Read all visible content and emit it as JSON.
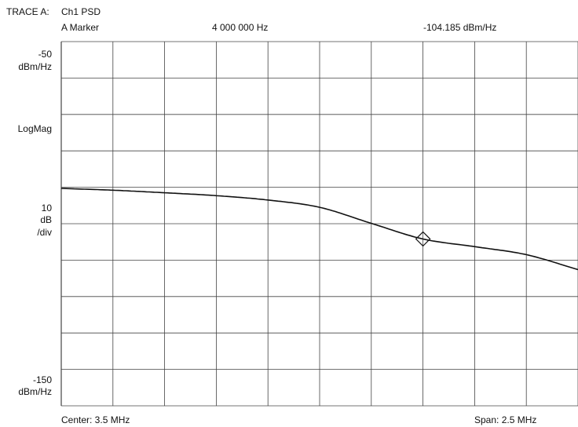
{
  "header": {
    "trace_label": "TRACE A:",
    "trace_name": "Ch1 PSD",
    "marker_label": "A Marker",
    "marker_freq": "4 000 000 Hz",
    "marker_value": "-104.185 dBm/Hz"
  },
  "left_axis": {
    "top_value": "-50",
    "top_unit": "dBm/Hz",
    "format": "LogMag",
    "scale_value": "10",
    "scale_unit": "dB",
    "scale_per": "/div",
    "bottom_value": "-150",
    "bottom_unit": "dBm/Hz"
  },
  "footer": {
    "center": "Center: 3.5 MHz",
    "span": "Span: 2.5 MHz"
  },
  "colors": {
    "grid": "#444444",
    "trace": "#111111",
    "background": "#ffffff"
  },
  "chart_data": {
    "type": "line",
    "x_unit": "MHz",
    "y_unit": "dBm/Hz",
    "xlim": [
      2.25,
      4.75
    ],
    "ylim": [
      -150,
      -50
    ],
    "grid": true,
    "x_divisions": 10,
    "y_divisions": 10,
    "series": [
      {
        "x": [
          2.25,
          2.5,
          2.75,
          3.0,
          3.25,
          3.5,
          3.75,
          4.0,
          4.25,
          4.5,
          4.75
        ],
        "y": [
          -90.3,
          -90.8,
          -91.5,
          -92.3,
          -93.5,
          -95.5,
          -99.9,
          -104.2,
          -106.3,
          -108.5,
          -112.6
        ]
      }
    ],
    "marker": {
      "x": 4.0,
      "y": -104.185
    }
  }
}
